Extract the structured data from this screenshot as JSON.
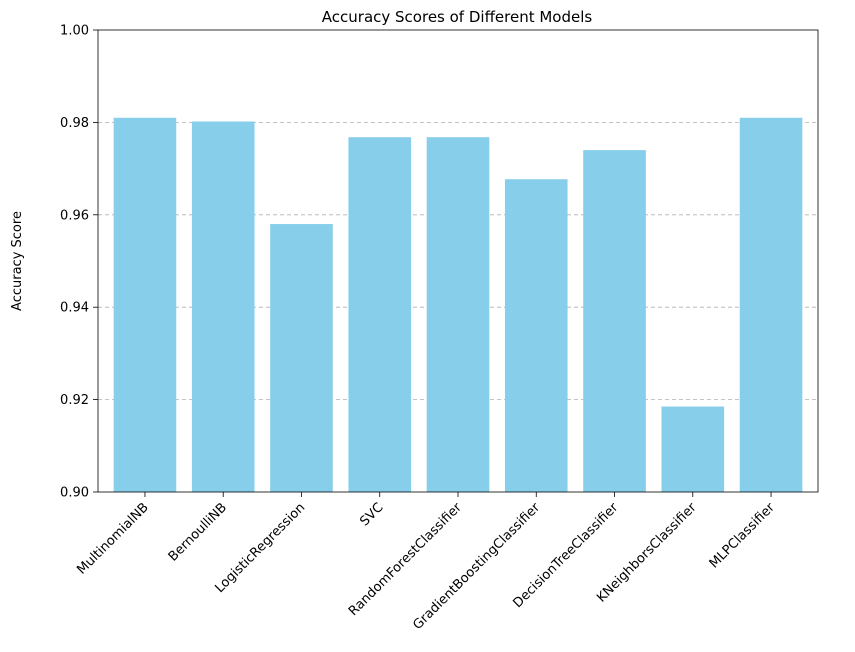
{
  "chart_data": {
    "type": "bar",
    "title": "Accuracy Scores of Different Models",
    "xlabel": "",
    "ylabel": "Accuracy Score",
    "categories": [
      "MultinomialNB",
      "BernoulliNB",
      "LogisticRegression",
      "SVC",
      "RandomForestClassifier",
      "GradientBoostingClassifier",
      "DecisionTreeClassifier",
      "KNeighborsClassifier",
      "MLPClassifier"
    ],
    "values": [
      0.981,
      0.9802,
      0.958,
      0.9768,
      0.9768,
      0.9677,
      0.974,
      0.9185,
      0.981
    ],
    "ylim": [
      0.9,
      1.0
    ],
    "yticks": [
      "0.90",
      "0.92",
      "0.94",
      "0.96",
      "0.98",
      "1.00"
    ],
    "grid": "y-dashed",
    "bar_color": "#87ceeb"
  }
}
